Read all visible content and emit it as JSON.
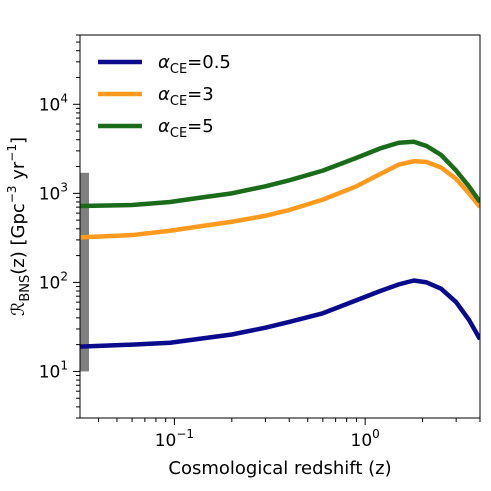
{
  "chart_data": {
    "type": "line",
    "xscale": "log",
    "yscale": "log",
    "xlim": [
      0.032,
      4.0
    ],
    "ylim": [
      3,
      60000
    ],
    "xlabel": "Cosmological redshift (z)",
    "ylabel": {
      "prefix": "ℛ",
      "subscript": "BNS",
      "middle": "(z) [Gpc",
      "sup1": "−3",
      "yr": " yr",
      "sup2": "−1",
      "suffix": "]"
    },
    "x_ticks": [
      {
        "value": 0.1,
        "base": "10",
        "exp": "−1"
      },
      {
        "value": 1,
        "base": "10",
        "exp": "0"
      }
    ],
    "y_ticks": [
      {
        "value": 10,
        "base": "10",
        "exp": "1"
      },
      {
        "value": 100,
        "base": "10",
        "exp": "2"
      },
      {
        "value": 1000,
        "base": "10",
        "exp": "3"
      },
      {
        "value": 10000,
        "base": "10",
        "exp": "4"
      }
    ],
    "legend_position": "top-left",
    "grid": false,
    "series": [
      {
        "name": "α_CE=0.5",
        "label_base": "α",
        "label_sub": "CE",
        "label_rest": "=0.5",
        "color": "#0a0a8c",
        "x": [
          0.032,
          0.06,
          0.095,
          0.13,
          0.2,
          0.3,
          0.4,
          0.6,
          0.9,
          1.2,
          1.5,
          1.8,
          2.1,
          2.5,
          3.0,
          3.5,
          4.0
        ],
        "y": [
          19,
          20,
          21,
          23,
          26,
          31,
          36,
          45,
          63,
          80,
          95,
          105,
          100,
          85,
          60,
          38,
          23
        ]
      },
      {
        "name": "α_CE=3",
        "label_base": "α",
        "label_sub": "CE",
        "label_rest": "=3",
        "color": "#ff9a1f",
        "x": [
          0.032,
          0.06,
          0.095,
          0.13,
          0.2,
          0.3,
          0.4,
          0.6,
          0.9,
          1.2,
          1.5,
          1.8,
          2.1,
          2.5,
          3.0,
          3.5,
          4.0
        ],
        "y": [
          320,
          340,
          380,
          420,
          480,
          560,
          650,
          850,
          1200,
          1650,
          2100,
          2300,
          2250,
          1950,
          1450,
          1000,
          700
        ]
      },
      {
        "name": "α_CE=5",
        "label_base": "α",
        "label_sub": "CE",
        "label_rest": "=5",
        "color": "#1a6b1a",
        "x": [
          0.032,
          0.06,
          0.095,
          0.13,
          0.2,
          0.3,
          0.4,
          0.6,
          0.9,
          1.2,
          1.5,
          1.8,
          2.1,
          2.5,
          3.0,
          3.5,
          4.0
        ],
        "y": [
          720,
          740,
          800,
          880,
          1000,
          1200,
          1400,
          1800,
          2500,
          3200,
          3700,
          3800,
          3400,
          2700,
          1800,
          1200,
          800
        ]
      }
    ],
    "observed_range": {
      "ymin": 10,
      "ymax": 1700,
      "color": "#808080"
    }
  }
}
